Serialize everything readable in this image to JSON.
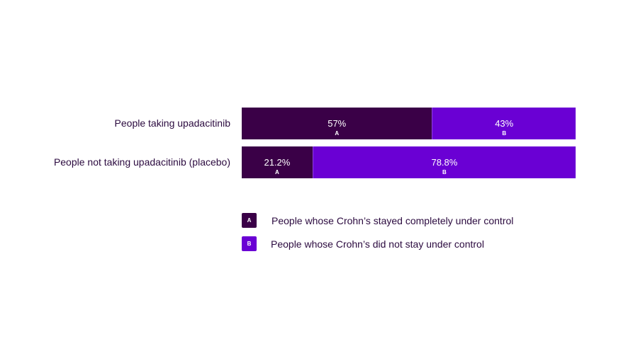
{
  "colors": {
    "a": "#3a0047",
    "b": "#6a00d4",
    "text": "#2b0a3f"
  },
  "chart_data": {
    "type": "bar",
    "orientation": "horizontal",
    "stacked": true,
    "title": "",
    "xlabel": "",
    "ylabel": "",
    "xlim": [
      0,
      100
    ],
    "unit": "%",
    "categories": [
      "People taking upadacitinib",
      "People not taking upadacitinib (placebo)"
    ],
    "series": [
      {
        "name": "People whose Crohn’s stayed completely under control",
        "letter": "A",
        "values": [
          57,
          21.2
        ],
        "labels": [
          "57%",
          "21.2%"
        ]
      },
      {
        "name": "People whose Crohn’s did not stay under control",
        "letter": "B",
        "values": [
          43,
          78.8
        ],
        "labels": [
          "43%",
          "78.8%"
        ]
      }
    ],
    "legend": {
      "placement": "bottom",
      "items": [
        {
          "letter": "A",
          "label": "People whose Crohn’s stayed completely under control"
        },
        {
          "letter": "B",
          "label": "People whose Crohn’s did not stay under control"
        }
      ]
    },
    "grid": false
  }
}
